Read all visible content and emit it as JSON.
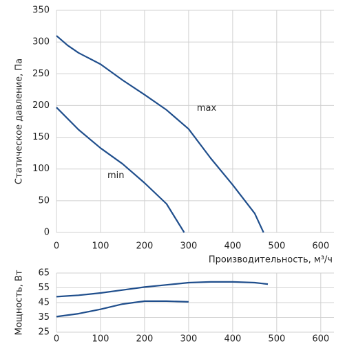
{
  "chart_data": [
    {
      "type": "line",
      "x_label": "Производительность, м³/ч",
      "y_label": "Статическое давление, Па",
      "xlim": [
        0,
        630
      ],
      "xticks": [
        0,
        100,
        200,
        300,
        400,
        500,
        600
      ],
      "ylim": [
        0,
        350
      ],
      "yticks": [
        0,
        50,
        100,
        150,
        200,
        250,
        300,
        350
      ],
      "grid": true,
      "series": [
        {
          "name": "max",
          "color": "#1f4e8c",
          "x": [
            0,
            25,
            50,
            100,
            150,
            200,
            250,
            300,
            350,
            400,
            450,
            470
          ],
          "values": [
            310,
            295,
            283,
            265,
            240,
            217,
            193,
            163,
            117,
            75,
            30,
            0
          ]
        },
        {
          "name": "min",
          "color": "#1f4e8c",
          "x": [
            0,
            50,
            100,
            150,
            200,
            250,
            290
          ],
          "values": [
            197,
            162,
            133,
            108,
            78,
            45,
            0
          ]
        }
      ]
    },
    {
      "type": "line",
      "y_label": "Мощность, Вт",
      "xlim": [
        0,
        630
      ],
      "xticks": [
        0,
        100,
        200,
        300,
        400,
        500,
        600
      ],
      "ylim": [
        25,
        65
      ],
      "yticks": [
        25,
        35,
        45,
        55,
        65
      ],
      "grid": true,
      "series": [
        {
          "color": "#1f4e8c",
          "x": [
            0,
            50,
            100,
            150,
            200,
            250,
            300,
            350,
            400,
            450,
            480
          ],
          "values": [
            49,
            50,
            51.5,
            53.5,
            55.5,
            57,
            58.5,
            59,
            59,
            58.5,
            57.5
          ]
        },
        {
          "color": "#1f4e8c",
          "x": [
            0,
            50,
            100,
            150,
            200,
            250,
            300
          ],
          "values": [
            35.5,
            37.5,
            40.5,
            44,
            46,
            46,
            45.5
          ]
        }
      ]
    }
  ]
}
